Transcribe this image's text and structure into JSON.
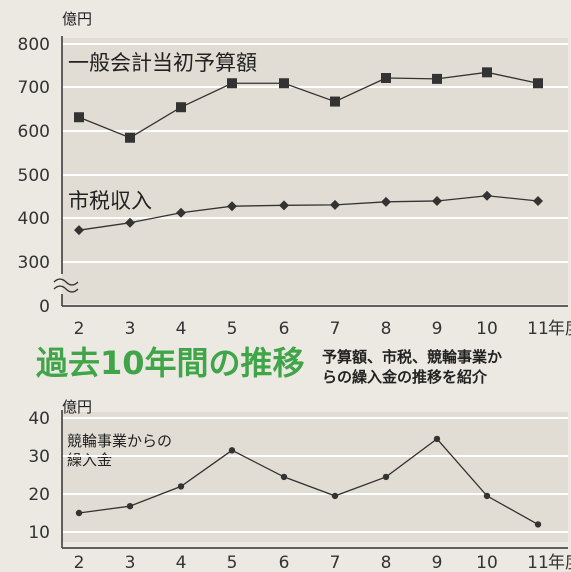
{
  "title": "過去10年間の推移",
  "description": [
    "予算額、市税、競輪事業か",
    "らの繰入金の推移を紹介"
  ],
  "chart_data": [
    {
      "type": "line",
      "unit": "億円",
      "x": [
        "2",
        "3",
        "4",
        "5",
        "6",
        "7",
        "8",
        "9",
        "10",
        "11"
      ],
      "x_suffix": "年度",
      "y_ticks": [
        "800",
        "700",
        "600",
        "500",
        "400",
        "300",
        "0"
      ],
      "ylim": [
        0,
        800
      ],
      "axis_break": true,
      "series": [
        {
          "name": "一般会計当初予算額",
          "marker": "square",
          "values": [
            632,
            585,
            655,
            710,
            710,
            668,
            722,
            720,
            735,
            710
          ]
        },
        {
          "name": "市税収入",
          "marker": "diamond",
          "values": [
            373,
            390,
            413,
            428,
            430,
            431,
            438,
            440,
            452,
            440
          ]
        }
      ]
    },
    {
      "type": "line",
      "unit": "億円",
      "x": [
        "2",
        "3",
        "4",
        "5",
        "6",
        "7",
        "8",
        "9",
        "10",
        "11"
      ],
      "x_suffix": "年度",
      "y_ticks": [
        "40",
        "30",
        "20",
        "10"
      ],
      "ylim": [
        10,
        40
      ],
      "series": [
        {
          "name": "競輪事業からの繰入金",
          "name_lines": [
            "競輪事業からの",
            "繰入金"
          ],
          "marker": "dot",
          "values": [
            15,
            16.8,
            22,
            31.5,
            24.5,
            19.5,
            24.5,
            34.5,
            19.5,
            12
          ]
        }
      ]
    }
  ]
}
